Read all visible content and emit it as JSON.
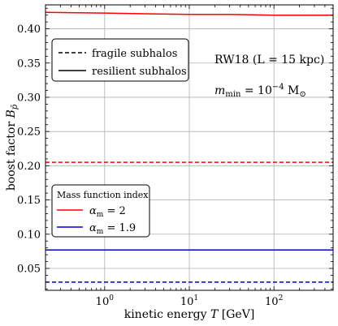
{
  "chart_data": {
    "type": "line",
    "xlabel": "kinetic energy T [GeV]",
    "ylabel": "boost factor B_p̄",
    "xscale": "log",
    "xlim": [
      0.2,
      500
    ],
    "ylim": [
      0.018,
      0.435
    ],
    "grid": true,
    "x_ticks": [
      1,
      10,
      100
    ],
    "x_tick_labels": [
      "10⁰",
      "10¹",
      "10²"
    ],
    "y_ticks": [
      0.05,
      0.1,
      0.15,
      0.2,
      0.25,
      0.3,
      0.35,
      0.4
    ],
    "y_tick_labels": [
      "0.05",
      "0.10",
      "0.15",
      "0.20",
      "0.25",
      "0.30",
      "0.35",
      "0.40"
    ],
    "series": [
      {
        "color": "#ff0000",
        "style": "solid",
        "x": [
          0.2,
          1,
          3,
          10,
          30,
          100,
          500
        ],
        "y": [
          0.424,
          0.423,
          0.422,
          0.421,
          0.421,
          0.42,
          0.42
        ]
      },
      {
        "color": "#ff0000",
        "style": "dashed",
        "x": [
          0.2,
          500
        ],
        "y": [
          0.205,
          0.205
        ]
      },
      {
        "color": "#0000cc",
        "style": "solid",
        "x": [
          0.2,
          500
        ],
        "y": [
          0.077,
          0.077
        ]
      },
      {
        "color": "#0000cc",
        "style": "dashed",
        "x": [
          0.2,
          500
        ],
        "y": [
          0.03,
          0.03
        ]
      }
    ],
    "legend_style": {
      "placement": "top-left",
      "entries": [
        {
          "label": "fragile subhalos",
          "style": "dashed"
        },
        {
          "label": "resilient subhalos",
          "style": "solid"
        }
      ]
    },
    "legend_mass": {
      "placement": "lower-left",
      "title": "Mass function index",
      "entries": [
        {
          "label": "α_m = 2",
          "color": "#ff0000"
        },
        {
          "label": "α_m = 1.9",
          "color": "#0000cc"
        }
      ]
    },
    "annotations": {
      "model": "RW18 (L = 15 kpc)",
      "mmin": "m_min = 10⁻⁴ M⊙"
    }
  }
}
